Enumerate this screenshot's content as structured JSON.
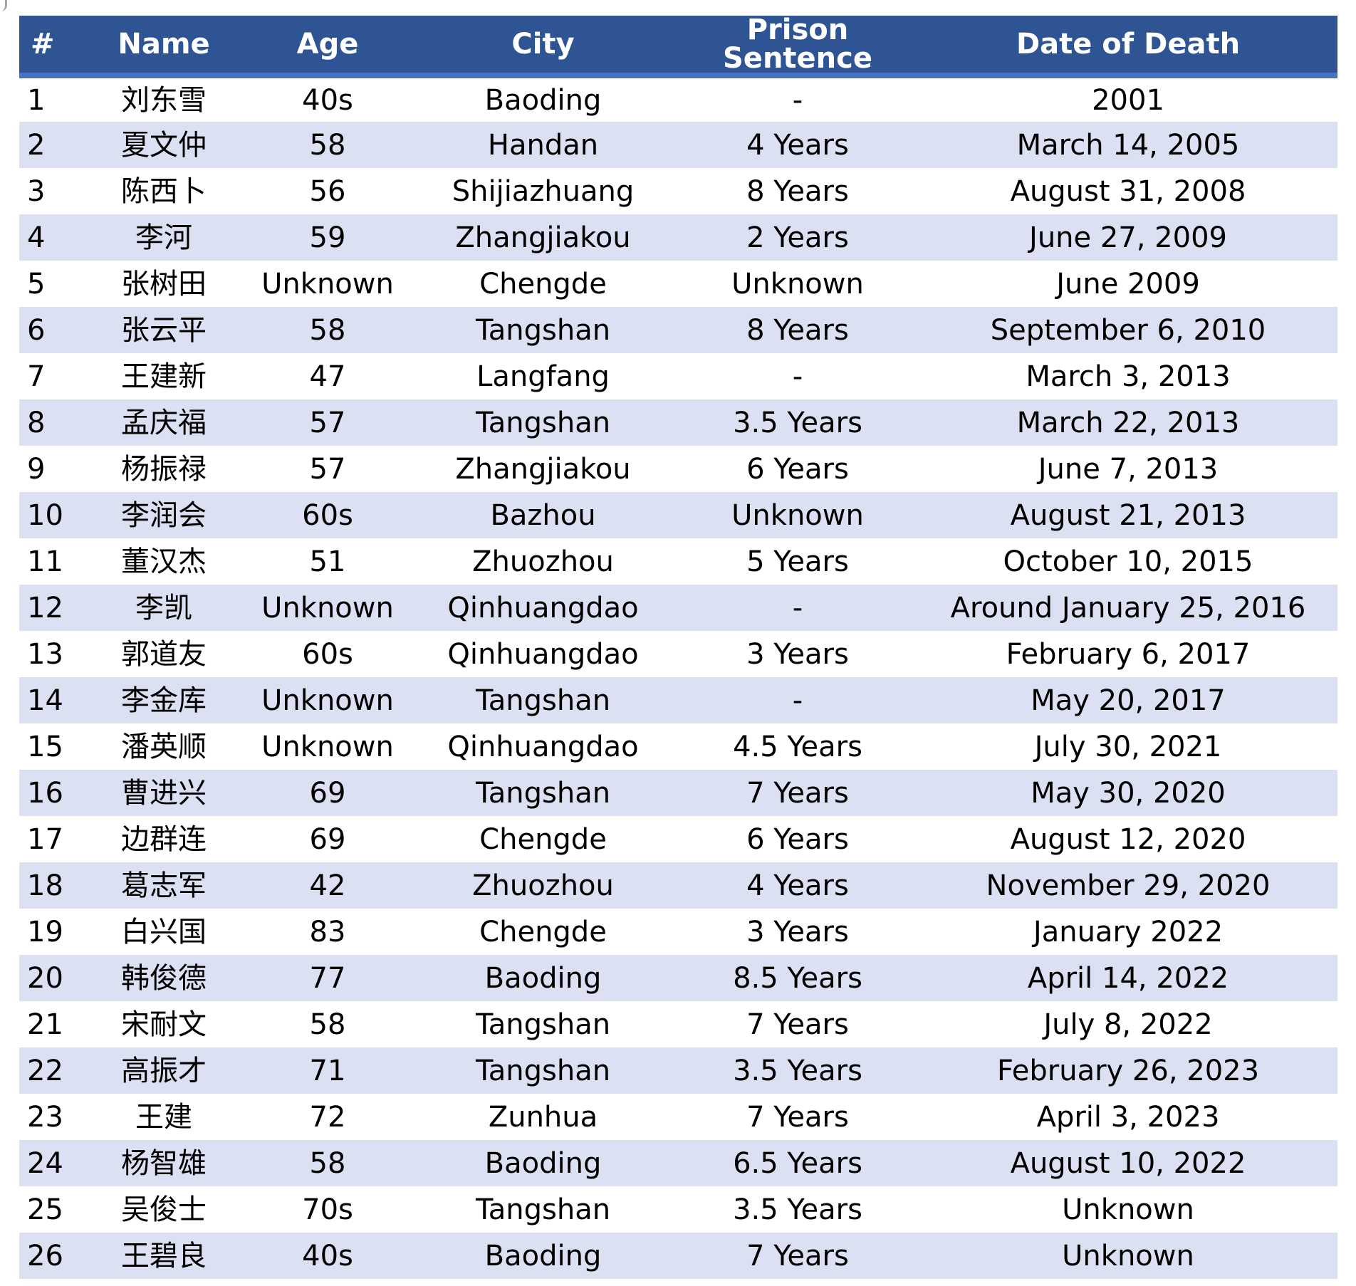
{
  "theme": {
    "header_bg": "#2F5494",
    "accent_line": "#4472C4",
    "band_row": "#DBE0F3",
    "row_white": "#FFFFFF",
    "header_text": "#FFFFFF",
    "body_text": "#000000"
  },
  "table": {
    "columns": [
      {
        "key": "num",
        "label": "#"
      },
      {
        "key": "name",
        "label": "Name"
      },
      {
        "key": "age",
        "label": "Age"
      },
      {
        "key": "city",
        "label": "City"
      },
      {
        "key": "sentence",
        "label": "Prison Sentence"
      },
      {
        "key": "death",
        "label": "Date of Death"
      }
    ],
    "rows": [
      {
        "num": "1",
        "name": "刘东雪",
        "age": "40s",
        "city": "Baoding",
        "sentence": "-",
        "death": "2001"
      },
      {
        "num": "2",
        "name": "夏文仲",
        "age": "58",
        "city": "Handan",
        "sentence": "4 Years",
        "death": "March 14, 2005"
      },
      {
        "num": "3",
        "name": "陈西卜",
        "age": "56",
        "city": "Shijiazhuang",
        "sentence": "8 Years",
        "death": "August 31, 2008"
      },
      {
        "num": "4",
        "name": "李河",
        "age": "59",
        "city": "Zhangjiakou",
        "sentence": "2 Years",
        "death": "June 27, 2009"
      },
      {
        "num": "5",
        "name": "张树田",
        "age": "Unknown",
        "city": "Chengde",
        "sentence": "Unknown",
        "death": "June 2009"
      },
      {
        "num": "6",
        "name": "张云平",
        "age": "58",
        "city": "Tangshan",
        "sentence": "8 Years",
        "death": "September 6, 2010"
      },
      {
        "num": "7",
        "name": "王建新",
        "age": "47",
        "city": "Langfang",
        "sentence": "-",
        "death": "March 3, 2013"
      },
      {
        "num": "8",
        "name": "孟庆福",
        "age": "57",
        "city": "Tangshan",
        "sentence": "3.5 Years",
        "death": "March 22, 2013"
      },
      {
        "num": "9",
        "name": "杨振禄",
        "age": "57",
        "city": "Zhangjiakou",
        "sentence": "6 Years",
        "death": "June 7, 2013"
      },
      {
        "num": "10",
        "name": "李润会",
        "age": "60s",
        "city": "Bazhou",
        "sentence": "Unknown",
        "death": "August 21, 2013"
      },
      {
        "num": "11",
        "name": "董汉杰",
        "age": "51",
        "city": "Zhuozhou",
        "sentence": "5 Years",
        "death": "October 10, 2015"
      },
      {
        "num": "12",
        "name": "李凯",
        "age": "Unknown",
        "city": "Qinhuangdao",
        "sentence": "-",
        "death": "Around January 25, 2016"
      },
      {
        "num": "13",
        "name": "郭道友",
        "age": "60s",
        "city": "Qinhuangdao",
        "sentence": "3 Years",
        "death": "February 6, 2017"
      },
      {
        "num": "14",
        "name": "李金库",
        "age": "Unknown",
        "city": "Tangshan",
        "sentence": "-",
        "death": "May 20, 2017"
      },
      {
        "num": "15",
        "name": "潘英顺",
        "age": "Unknown",
        "city": "Qinhuangdao",
        "sentence": "4.5 Years",
        "death": "July 30, 2021"
      },
      {
        "num": "16",
        "name": "曹进兴",
        "age": "69",
        "city": "Tangshan",
        "sentence": "7 Years",
        "death": "May 30, 2020"
      },
      {
        "num": "17",
        "name": "边群连",
        "age": "69",
        "city": "Chengde",
        "sentence": "6 Years",
        "death": "August 12, 2020"
      },
      {
        "num": "18",
        "name": "葛志军",
        "age": "42",
        "city": "Zhuozhou",
        "sentence": "4 Years",
        "death": "November 29, 2020"
      },
      {
        "num": "19",
        "name": "白兴国",
        "age": "83",
        "city": "Chengde",
        "sentence": "3 Years",
        "death": "January 2022"
      },
      {
        "num": "20",
        "name": "韩俊德",
        "age": "77",
        "city": "Baoding",
        "sentence": "8.5 Years",
        "death": "April 14, 2022"
      },
      {
        "num": "21",
        "name": "宋耐文",
        "age": "58",
        "city": "Tangshan",
        "sentence": "7 Years",
        "death": "July 8, 2022"
      },
      {
        "num": "22",
        "name": "高振才",
        "age": "71",
        "city": "Tangshan",
        "sentence": "3.5 Years",
        "death": "February 26, 2023"
      },
      {
        "num": "23",
        "name": "王建",
        "age": "72",
        "city": "Zunhua",
        "sentence": "7 Years",
        "death": "April 3, 2023"
      },
      {
        "num": "24",
        "name": "杨智雄",
        "age": "58",
        "city": "Baoding",
        "sentence": "6.5 Years",
        "death": "August 10, 2022"
      },
      {
        "num": "25",
        "name": "吴俊士",
        "age": "70s",
        "city": "Tangshan",
        "sentence": "3.5 Years",
        "death": "Unknown"
      },
      {
        "num": "26",
        "name": "王碧良",
        "age": "40s",
        "city": "Baoding",
        "sentence": "7 Years",
        "death": "Unknown"
      }
    ]
  }
}
